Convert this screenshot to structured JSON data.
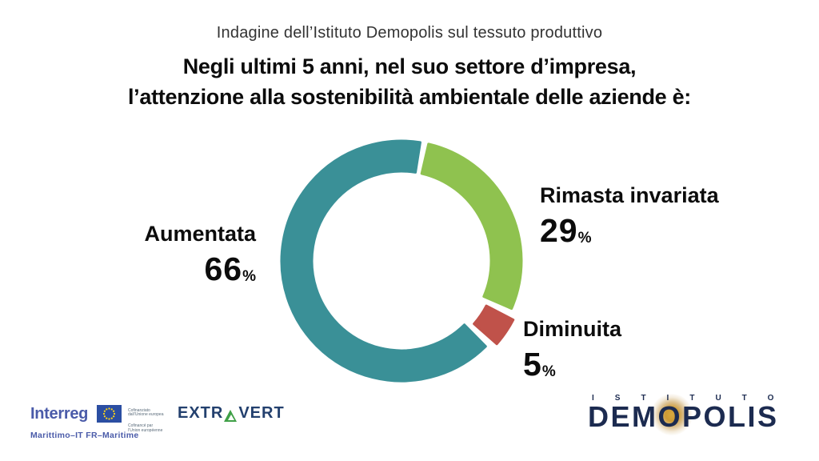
{
  "header": {
    "subtitle": "Indagine dell’Istituto Demopolis sul tessuto produttivo",
    "title_line1": "Negli ultimi 5 anni, nel suo settore d’impresa,",
    "title_line2": "l’attenzione alla sostenibilità ambientale delle aziende è:"
  },
  "chart_data": {
    "type": "pie",
    "subtype": "donut",
    "title": "Negli ultimi 5 anni, nel suo settore d’impresa, l’attenzione alla sostenibilità ambientale delle aziende è:",
    "percent_symbol": "%",
    "rotation_deg": 11,
    "gap_deg": 4,
    "outer_radius": 150,
    "inner_radius": 112,
    "slices": [
      {
        "label": "Rimasta invariata",
        "value": 29,
        "color": "#8FC24F",
        "explode": 0
      },
      {
        "label": "Diminuita",
        "value": 5,
        "color": "#C0524A",
        "explode": 8
      },
      {
        "label": "Aumentata",
        "value": 66,
        "color": "#3A9097",
        "explode": 0
      }
    ]
  },
  "footer": {
    "interreg": {
      "name": "Interreg",
      "program": "Marittimo–IT FR–Maritime",
      "cofunding_it": "Cofinanziato\ndall’Unione europea",
      "cofunding_fr": "Cofinancé par\nl’Union européenne",
      "eu_flag_stars": 12
    },
    "extravert": {
      "left": "EXTR",
      "right": "VERT"
    },
    "demopolis": {
      "top": "ISTITUTO",
      "name": "DEMOPOLIS"
    }
  },
  "colors": {
    "slice_teal": "#3A9097",
    "slice_green": "#8FC24F",
    "slice_red": "#C0524A",
    "interreg_blue": "#4A5BA9",
    "eu_flag_blue": "#2B4EA2",
    "eu_star_yellow": "#FFD617",
    "extravert_navy": "#23406E",
    "extravert_green": "#3FA047",
    "demopolis_navy": "#1C2B50",
    "demopolis_gold": "#CD9A33",
    "title_text": "#0c0c0c",
    "subtitle_text": "#333333"
  }
}
